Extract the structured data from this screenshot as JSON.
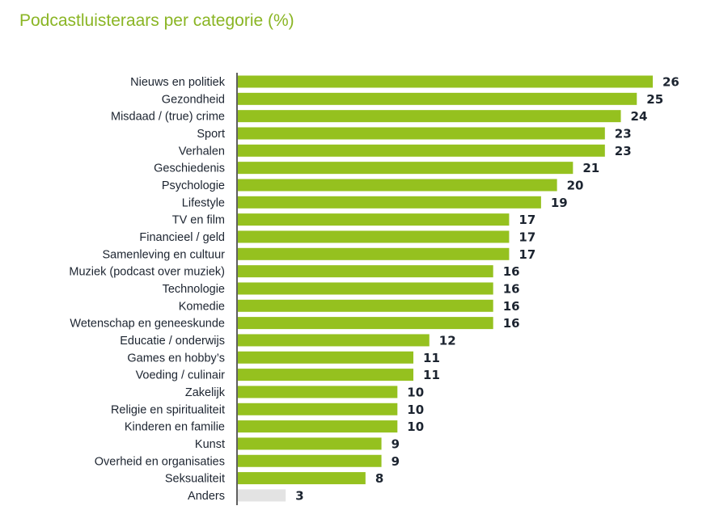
{
  "title": "Podcastluisteraars per categorie (%)",
  "colors": {
    "bar": "#95c11f",
    "bar_other": "#e3e3e3",
    "axis": "#2a2a2a",
    "text": "#1c2430",
    "title": "#8ab524"
  },
  "chart_data": {
    "type": "bar",
    "orientation": "horizontal",
    "title": "Podcastluisteraars per categorie (%)",
    "categories": [
      "Nieuws en politiek",
      "Gezondheid",
      "Misdaad / (true) crime",
      "Sport",
      "Verhalen",
      "Geschiedenis",
      "Psychologie",
      "Lifestyle",
      "TV en film",
      "Financieel / geld",
      "Samenleving en cultuur",
      "Muziek (podcast over muziek)",
      "Technologie",
      "Komedie",
      "Wetenschap en geneeskunde",
      "Educatie / onderwijs",
      "Games en hobby’s",
      "Voeding / culinair",
      "Zakelijk",
      "Religie en spiritualiteit",
      "Kinderen en familie",
      "Kunst",
      "Overheid en organisaties",
      "Seksualiteit",
      "Anders"
    ],
    "values": [
      26,
      25,
      24,
      23,
      23,
      21,
      20,
      19,
      17,
      17,
      17,
      16,
      16,
      16,
      16,
      12,
      11,
      11,
      10,
      10,
      10,
      9,
      9,
      8,
      3
    ],
    "highlight": {
      "Anders": "#e3e3e3"
    },
    "xlim": [
      0,
      26
    ],
    "grid": false,
    "data_labels": true
  }
}
